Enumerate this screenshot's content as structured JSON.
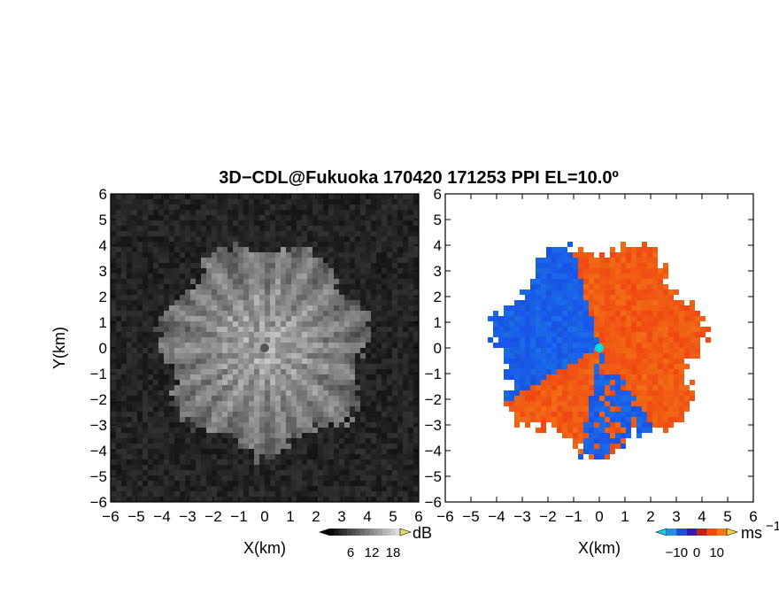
{
  "title": "3D−CDL@Fukuoka 170420 171253 PPI EL=10.0º",
  "chart_data": [
    {
      "type": "heatmap",
      "name": "reflectivity",
      "xlabel": "X(km)",
      "ylabel": "Y(km)",
      "xlim": [
        -6,
        6
      ],
      "ylim": [
        -6,
        6
      ],
      "x_ticks": [
        "−6",
        "−5",
        "−4",
        "−3",
        "−2",
        "−1",
        "0",
        "1",
        "2",
        "3",
        "4",
        "5",
        "6"
      ],
      "y_ticks": [
        "6",
        "5",
        "4",
        "3",
        "2",
        "1",
        "0",
        "−1",
        "−2",
        "−3",
        "−4",
        "−5",
        "−6"
      ],
      "echo_radius_km": 4.3,
      "colormap": "grayscale",
      "colorbar": {
        "label": "dB",
        "ticks": [
          "6",
          "12",
          "18"
        ],
        "range": [
          0,
          20
        ]
      }
    },
    {
      "type": "heatmap",
      "name": "doppler_velocity",
      "xlabel": "X(km)",
      "xlim": [
        -6,
        6
      ],
      "ylim": [
        -6,
        6
      ],
      "x_ticks": [
        "−6",
        "−5",
        "−4",
        "−3",
        "−2",
        "−1",
        "0",
        "1",
        "2",
        "3",
        "4",
        "5",
        "6"
      ],
      "y_ticks": [
        "6",
        "5",
        "4",
        "3",
        "2",
        "1",
        "0",
        "−1",
        "−2",
        "−3",
        "−4",
        "−5",
        "−6"
      ],
      "echo_radius_km": 4.3,
      "colormap": "blue-red diverging",
      "colorbar": {
        "label": "ms",
        "label_sup": "−1",
        "ticks": [
          "−10",
          "0",
          "10"
        ],
        "range": [
          -15,
          15
        ]
      }
    }
  ],
  "colors": {
    "negative": "#1a4fd8",
    "positive": "#f03c10",
    "radar": "#00e0e0"
  }
}
